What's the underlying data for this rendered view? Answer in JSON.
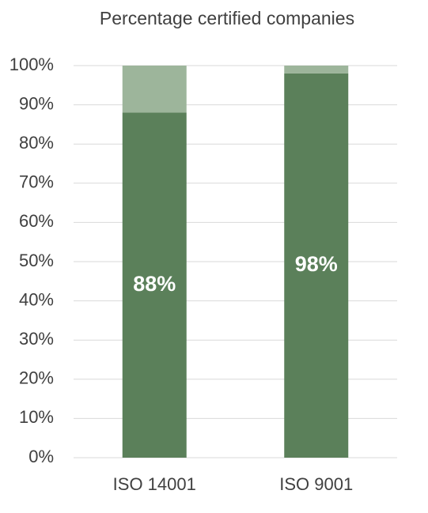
{
  "chart_data": {
    "type": "stacked_bar",
    "title": "Percentage certified companies",
    "categories": [
      "ISO 14001",
      "ISO 9001"
    ],
    "series": [
      {
        "color": "#5b805a",
        "values": [
          88,
          98
        ],
        "value_labels": [
          "88%",
          "98%"
        ]
      },
      {
        "color": "#9db59b",
        "values": [
          12,
          2
        ]
      }
    ],
    "ylim": [
      0,
      100
    ],
    "yticks": [
      {
        "value": 0,
        "label": "0%"
      },
      {
        "value": 10,
        "label": "10%"
      },
      {
        "value": 20,
        "label": "20%"
      },
      {
        "value": 30,
        "label": "30%"
      },
      {
        "value": 40,
        "label": "40%"
      },
      {
        "value": 50,
        "label": "50%"
      },
      {
        "value": 60,
        "label": "60%"
      },
      {
        "value": 70,
        "label": "70%"
      },
      {
        "value": 80,
        "label": "80%"
      },
      {
        "value": 90,
        "label": "90%"
      },
      {
        "value": 100,
        "label": "100%"
      }
    ],
    "grid": true
  }
}
